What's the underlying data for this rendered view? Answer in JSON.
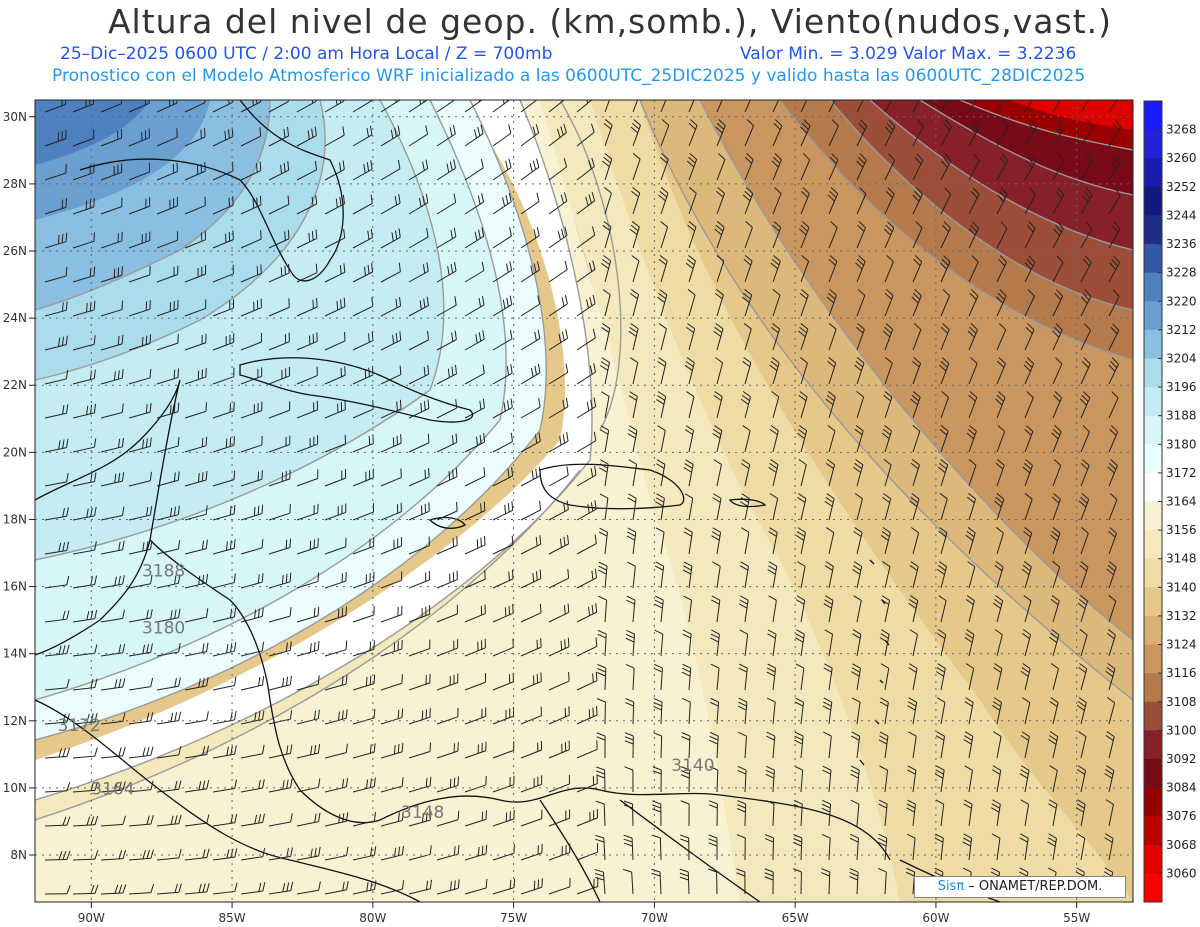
{
  "header": {
    "title": "Altura del nivel de geop. (km,somb.), Viento(nudos,vast.)",
    "line1_left": "25–Dic–2025   0600 UTC / 2:00 am Hora Local / Z = 700mb",
    "line1_right": "Valor Min. = 3.029   Valor Max. = 3.2236",
    "line2": "Pronostico con el Modelo Atmosferico WRF inicializado a las 0600UTC_25DIC2025 y valido hasta las  0600UTC_28DIC2025"
  },
  "map": {
    "lon_range": [
      -92,
      -53
    ],
    "lat_range": [
      6.6,
      30.5
    ],
    "lon_ticks": [
      "90W",
      "85W",
      "80W",
      "75W",
      "70W",
      "65W",
      "60W",
      "55W"
    ],
    "lon_tick_values": [
      -90,
      -85,
      -80,
      -75,
      -70,
      -65,
      -60,
      -55
    ],
    "lat_ticks": [
      "8N",
      "10N",
      "12N",
      "14N",
      "16N",
      "18N",
      "20N",
      "22N",
      "24N",
      "26N",
      "28N",
      "30N"
    ],
    "lat_tick_values": [
      8,
      10,
      12,
      14,
      16,
      18,
      20,
      22,
      24,
      26,
      28,
      30
    ],
    "contour_labels": [
      {
        "text": "3188",
        "lon": -88.2,
        "lat": 16.3
      },
      {
        "text": "3180",
        "lon": -88.2,
        "lat": 14.6
      },
      {
        "text": "3172",
        "lon": -91.2,
        "lat": 11.7
      },
      {
        "text": "3164",
        "lon": -90.0,
        "lat": 9.8
      },
      {
        "text": "3148",
        "lon": -79.0,
        "lat": 9.1
      },
      {
        "text": "3140",
        "lon": -69.4,
        "lat": 10.5
      }
    ]
  },
  "colorbar": {
    "labels": [
      "3268",
      "3260",
      "3252",
      "3244",
      "3236",
      "3228",
      "3220",
      "3212",
      "3204",
      "3196",
      "3188",
      "3180",
      "3172",
      "3164",
      "3156",
      "3148",
      "3140",
      "3132",
      "3124",
      "3116",
      "3108",
      "3100",
      "3092",
      "3084",
      "3076",
      "3068",
      "3060"
    ],
    "colors": [
      "#1a1aff",
      "#2222dd",
      "#1a1ab0",
      "#171780",
      "#1c2e8a",
      "#3358a8",
      "#4f80bf",
      "#6a9fd0",
      "#8abfe2",
      "#abdcec",
      "#c4ecf2",
      "#d7f6f8",
      "#eafcfc",
      "#ffffff",
      "#f8f2d2",
      "#f4e8bd",
      "#eedca4",
      "#e6c98a",
      "#d9b074",
      "#c99660",
      "#b47a4c",
      "#9d4e38",
      "#872028",
      "#780a18",
      "#960000",
      "#bb0000",
      "#e60000",
      "#ff0000"
    ]
  },
  "credit": {
    "brand": "Sisπ",
    "text": " – ONAMET/REP.DOM."
  }
}
